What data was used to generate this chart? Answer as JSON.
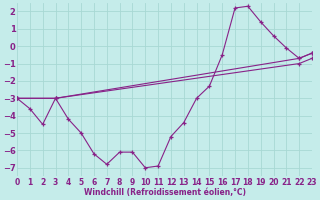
{
  "xlabel": "Windchill (Refroidissement éolien,°C)",
  "bg_color": "#c5ecea",
  "grid_color": "#a8d8d4",
  "line_color": "#882288",
  "xlim": [
    0,
    23
  ],
  "ylim": [
    -7.5,
    2.5
  ],
  "xticks": [
    0,
    1,
    2,
    3,
    4,
    5,
    6,
    7,
    8,
    9,
    10,
    11,
    12,
    13,
    14,
    15,
    16,
    17,
    18,
    19,
    20,
    21,
    22,
    23
  ],
  "yticks": [
    -7,
    -6,
    -5,
    -4,
    -3,
    -2,
    -1,
    0,
    1,
    2
  ],
  "zigzag_x": [
    0,
    1,
    2,
    3,
    4,
    5,
    6,
    7,
    8,
    9,
    10,
    11,
    12,
    13,
    14,
    15,
    16,
    17,
    18,
    19,
    20,
    21,
    22,
    23
  ],
  "zigzag_y": [
    -3.0,
    -3.6,
    -4.5,
    -3.0,
    -4.2,
    -5.0,
    -6.2,
    -6.8,
    -6.1,
    -6.1,
    -7.0,
    -6.9,
    -5.2,
    -4.4,
    -3.0,
    -2.3,
    -0.5,
    2.2,
    2.3,
    1.4,
    0.6,
    -0.1,
    -0.7,
    -0.4
  ],
  "trend1_x": [
    0,
    3,
    22,
    23
  ],
  "trend1_y": [
    -3.0,
    -3.0,
    -0.7,
    -0.4
  ],
  "trend2_x": [
    0,
    3,
    22,
    23
  ],
  "trend2_y": [
    -3.0,
    -3.0,
    -1.0,
    -0.7
  ],
  "xlabel_fontsize": 5.5,
  "tick_fontsize": 5.5
}
